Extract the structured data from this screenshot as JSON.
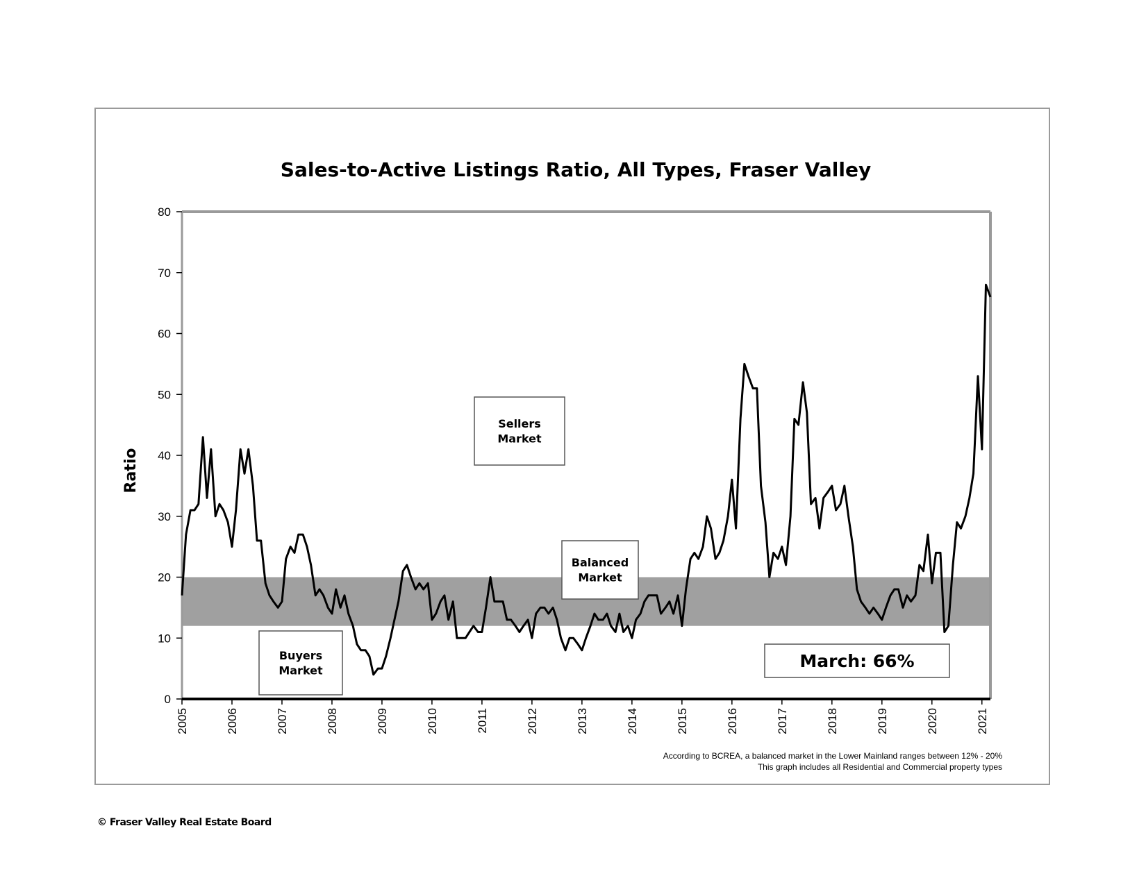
{
  "chart_data": {
    "type": "line",
    "title": "Sales-to-Active Listings Ratio, All Types, Fraser Valley",
    "xlabel": "",
    "ylabel": "Ratio",
    "xlim": [
      2005,
      2021.17
    ],
    "ylim": [
      0,
      80
    ],
    "yticks": [
      "0",
      "10",
      "20",
      "30",
      "40",
      "50",
      "60",
      "70",
      "80"
    ],
    "xticks": [
      "2005",
      "2006",
      "2007",
      "2008",
      "2009",
      "2010",
      "2011",
      "2012",
      "2013",
      "2014",
      "2015",
      "2016",
      "2017",
      "2018",
      "2019",
      "2020",
      "2021"
    ],
    "grid": false,
    "balanced_band": [
      12,
      20
    ],
    "annotations": {
      "sellers": [
        "Sellers",
        "Market"
      ],
      "balanced": [
        "Balanced",
        "Market"
      ],
      "buyers": [
        "Buyers",
        "Market"
      ],
      "current": "March: 66%"
    },
    "notes": [
      "According to BCREA, a balanced market in the Lower Mainland ranges between 12% - 20%",
      "This graph includes all Residential and Commercial property types"
    ],
    "series": [
      {
        "color": "#000000",
        "points": [
          [
            2005.0,
            17
          ],
          [
            2005.08,
            27
          ],
          [
            2005.17,
            31
          ],
          [
            2005.25,
            31
          ],
          [
            2005.33,
            32
          ],
          [
            2005.42,
            43
          ],
          [
            2005.5,
            33
          ],
          [
            2005.58,
            41
          ],
          [
            2005.67,
            30
          ],
          [
            2005.75,
            32
          ],
          [
            2005.83,
            31
          ],
          [
            2005.92,
            29
          ],
          [
            2006.0,
            25
          ],
          [
            2006.08,
            31
          ],
          [
            2006.17,
            41
          ],
          [
            2006.25,
            37
          ],
          [
            2006.33,
            41
          ],
          [
            2006.42,
            35
          ],
          [
            2006.5,
            26
          ],
          [
            2006.58,
            26
          ],
          [
            2006.67,
            19
          ],
          [
            2006.75,
            17
          ],
          [
            2006.83,
            16
          ],
          [
            2006.92,
            15
          ],
          [
            2007.0,
            16
          ],
          [
            2007.08,
            23
          ],
          [
            2007.17,
            25
          ],
          [
            2007.25,
            24
          ],
          [
            2007.33,
            27
          ],
          [
            2007.42,
            27
          ],
          [
            2007.5,
            25
          ],
          [
            2007.58,
            22
          ],
          [
            2007.67,
            17
          ],
          [
            2007.75,
            18
          ],
          [
            2007.83,
            17
          ],
          [
            2007.92,
            15
          ],
          [
            2008.0,
            14
          ],
          [
            2008.08,
            18
          ],
          [
            2008.17,
            15
          ],
          [
            2008.25,
            17
          ],
          [
            2008.33,
            14
          ],
          [
            2008.42,
            12
          ],
          [
            2008.5,
            9
          ],
          [
            2008.58,
            8
          ],
          [
            2008.67,
            8
          ],
          [
            2008.75,
            7
          ],
          [
            2008.83,
            4
          ],
          [
            2008.92,
            5
          ],
          [
            2009.0,
            5
          ],
          [
            2009.08,
            7
          ],
          [
            2009.17,
            10
          ],
          [
            2009.25,
            13
          ],
          [
            2009.33,
            16
          ],
          [
            2009.42,
            21
          ],
          [
            2009.5,
            22
          ],
          [
            2009.58,
            20
          ],
          [
            2009.67,
            18
          ],
          [
            2009.75,
            19
          ],
          [
            2009.83,
            18
          ],
          [
            2009.92,
            19
          ],
          [
            2010.0,
            13
          ],
          [
            2010.08,
            14
          ],
          [
            2010.17,
            16
          ],
          [
            2010.25,
            17
          ],
          [
            2010.33,
            13
          ],
          [
            2010.42,
            16
          ],
          [
            2010.5,
            10
          ],
          [
            2010.58,
            10
          ],
          [
            2010.67,
            10
          ],
          [
            2010.75,
            11
          ],
          [
            2010.83,
            12
          ],
          [
            2010.92,
            11
          ],
          [
            2011.0,
            11
          ],
          [
            2011.08,
            15
          ],
          [
            2011.17,
            20
          ],
          [
            2011.25,
            16
          ],
          [
            2011.33,
            16
          ],
          [
            2011.42,
            16
          ],
          [
            2011.5,
            13
          ],
          [
            2011.58,
            13
          ],
          [
            2011.67,
            12
          ],
          [
            2011.75,
            11
          ],
          [
            2011.83,
            12
          ],
          [
            2011.92,
            13
          ],
          [
            2012.0,
            10
          ],
          [
            2012.08,
            14
          ],
          [
            2012.17,
            15
          ],
          [
            2012.25,
            15
          ],
          [
            2012.33,
            14
          ],
          [
            2012.42,
            15
          ],
          [
            2012.5,
            13
          ],
          [
            2012.58,
            10
          ],
          [
            2012.67,
            8
          ],
          [
            2012.75,
            10
          ],
          [
            2012.83,
            10
          ],
          [
            2012.92,
            9
          ],
          [
            2013.0,
            8
          ],
          [
            2013.08,
            10
          ],
          [
            2013.17,
            12
          ],
          [
            2013.25,
            14
          ],
          [
            2013.33,
            13
          ],
          [
            2013.42,
            13
          ],
          [
            2013.5,
            14
          ],
          [
            2013.58,
            12
          ],
          [
            2013.67,
            11
          ],
          [
            2013.75,
            14
          ],
          [
            2013.83,
            11
          ],
          [
            2013.92,
            12
          ],
          [
            2014.0,
            10
          ],
          [
            2014.08,
            13
          ],
          [
            2014.17,
            14
          ],
          [
            2014.25,
            16
          ],
          [
            2014.33,
            17
          ],
          [
            2014.42,
            17
          ],
          [
            2014.5,
            17
          ],
          [
            2014.58,
            14
          ],
          [
            2014.67,
            15
          ],
          [
            2014.75,
            16
          ],
          [
            2014.83,
            14
          ],
          [
            2014.92,
            17
          ],
          [
            2015.0,
            12
          ],
          [
            2015.08,
            18
          ],
          [
            2015.17,
            23
          ],
          [
            2015.25,
            24
          ],
          [
            2015.33,
            23
          ],
          [
            2015.42,
            25
          ],
          [
            2015.5,
            30
          ],
          [
            2015.58,
            28
          ],
          [
            2015.67,
            23
          ],
          [
            2015.75,
            24
          ],
          [
            2015.83,
            26
          ],
          [
            2015.92,
            30
          ],
          [
            2016.0,
            36
          ],
          [
            2016.08,
            28
          ],
          [
            2016.17,
            46
          ],
          [
            2016.25,
            55
          ],
          [
            2016.33,
            53
          ],
          [
            2016.42,
            51
          ],
          [
            2016.5,
            51
          ],
          [
            2016.58,
            35
          ],
          [
            2016.67,
            29
          ],
          [
            2016.75,
            20
          ],
          [
            2016.83,
            24
          ],
          [
            2016.92,
            23
          ],
          [
            2017.0,
            25
          ],
          [
            2017.08,
            22
          ],
          [
            2017.17,
            30
          ],
          [
            2017.25,
            46
          ],
          [
            2017.33,
            45
          ],
          [
            2017.42,
            52
          ],
          [
            2017.5,
            47
          ],
          [
            2017.58,
            32
          ],
          [
            2017.67,
            33
          ],
          [
            2017.75,
            28
          ],
          [
            2017.83,
            33
          ],
          [
            2017.92,
            34
          ],
          [
            2018.0,
            35
          ],
          [
            2018.08,
            31
          ],
          [
            2018.17,
            32
          ],
          [
            2018.25,
            35
          ],
          [
            2018.33,
            30
          ],
          [
            2018.42,
            25
          ],
          [
            2018.5,
            18
          ],
          [
            2018.58,
            16
          ],
          [
            2018.67,
            15
          ],
          [
            2018.75,
            14
          ],
          [
            2018.83,
            15
          ],
          [
            2018.92,
            14
          ],
          [
            2019.0,
            13
          ],
          [
            2019.08,
            15
          ],
          [
            2019.17,
            17
          ],
          [
            2019.25,
            18
          ],
          [
            2019.33,
            18
          ],
          [
            2019.42,
            15
          ],
          [
            2019.5,
            17
          ],
          [
            2019.58,
            16
          ],
          [
            2019.67,
            17
          ],
          [
            2019.75,
            22
          ],
          [
            2019.83,
            21
          ],
          [
            2019.92,
            27
          ],
          [
            2020.0,
            19
          ],
          [
            2020.08,
            24
          ],
          [
            2020.17,
            24
          ],
          [
            2020.25,
            11
          ],
          [
            2020.33,
            12
          ],
          [
            2020.42,
            22
          ],
          [
            2020.5,
            29
          ],
          [
            2020.58,
            28
          ],
          [
            2020.67,
            30
          ],
          [
            2020.75,
            33
          ],
          [
            2020.83,
            37
          ],
          [
            2020.92,
            53
          ],
          [
            2021.0,
            41
          ],
          [
            2021.08,
            68
          ],
          [
            2021.17,
            66
          ]
        ]
      }
    ]
  },
  "footer": {
    "copyright": "© Fraser Valley Real Estate Board"
  }
}
